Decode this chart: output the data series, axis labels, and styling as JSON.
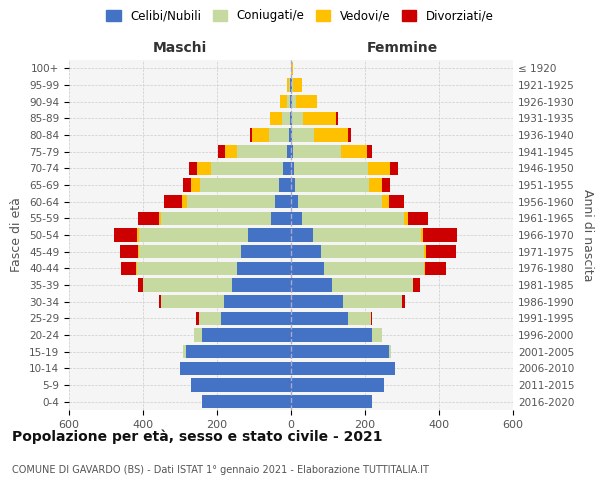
{
  "age_groups": [
    "100+",
    "95-99",
    "90-94",
    "85-89",
    "80-84",
    "75-79",
    "70-74",
    "65-69",
    "60-64",
    "55-59",
    "50-54",
    "45-49",
    "40-44",
    "35-39",
    "30-34",
    "25-29",
    "20-24",
    "15-19",
    "10-14",
    "5-9",
    "0-4"
  ],
  "birth_years": [
    "≤ 1920",
    "1921-1925",
    "1926-1930",
    "1931-1935",
    "1936-1940",
    "1941-1945",
    "1946-1950",
    "1951-1955",
    "1956-1960",
    "1961-1965",
    "1966-1970",
    "1971-1975",
    "1976-1980",
    "1981-1985",
    "1986-1990",
    "1991-1995",
    "1996-2000",
    "2001-2005",
    "2006-2010",
    "2011-2015",
    "2016-2020"
  ],
  "colors": {
    "celibi": "#4472C4",
    "coniugati": "#c5d9a0",
    "vedovi": "#ffc000",
    "divorziati": "#cc0000"
  },
  "maschi": {
    "celibi": [
      1,
      2,
      2,
      3,
      5,
      12,
      22,
      32,
      42,
      55,
      115,
      135,
      145,
      160,
      180,
      190,
      240,
      285,
      300,
      270,
      240
    ],
    "coniugati": [
      0,
      3,
      10,
      20,
      55,
      135,
      195,
      215,
      240,
      295,
      295,
      275,
      270,
      240,
      170,
      58,
      22,
      6,
      0,
      0,
      0
    ],
    "vedovi": [
      0,
      5,
      18,
      35,
      45,
      32,
      38,
      22,
      12,
      6,
      6,
      4,
      3,
      0,
      0,
      0,
      0,
      0,
      0,
      0,
      0
    ],
    "divorziati": [
      0,
      0,
      0,
      0,
      6,
      18,
      22,
      22,
      48,
      58,
      62,
      48,
      42,
      14,
      6,
      10,
      0,
      0,
      0,
      0,
      0
    ]
  },
  "femmine": {
    "celibi": [
      1,
      2,
      2,
      2,
      3,
      5,
      8,
      12,
      20,
      30,
      60,
      80,
      90,
      110,
      140,
      155,
      220,
      265,
      280,
      250,
      220
    ],
    "coniugati": [
      0,
      3,
      12,
      30,
      60,
      130,
      200,
      200,
      225,
      275,
      290,
      280,
      270,
      220,
      160,
      60,
      25,
      5,
      0,
      0,
      0
    ],
    "vedovi": [
      5,
      25,
      55,
      90,
      90,
      70,
      60,
      35,
      20,
      10,
      8,
      5,
      3,
      0,
      0,
      0,
      0,
      0,
      0,
      0,
      0
    ],
    "divorziati": [
      0,
      0,
      0,
      5,
      10,
      15,
      20,
      20,
      40,
      55,
      90,
      80,
      55,
      18,
      8,
      5,
      0,
      0,
      0,
      0,
      0
    ]
  },
  "xlim": 600,
  "title": "Popolazione per età, sesso e stato civile - 2021",
  "subtitle": "COMUNE DI GAVARDO (BS) - Dati ISTAT 1° gennaio 2021 - Elaborazione TUTTITALIA.IT",
  "ylabel_left": "Fasce di età",
  "ylabel_right": "Anni di nascita",
  "header_maschi": "Maschi",
  "header_femmine": "Femmine",
  "legend_labels": [
    "Celibi/Nubili",
    "Coniugati/e",
    "Vedovi/e",
    "Divorziati/e"
  ]
}
